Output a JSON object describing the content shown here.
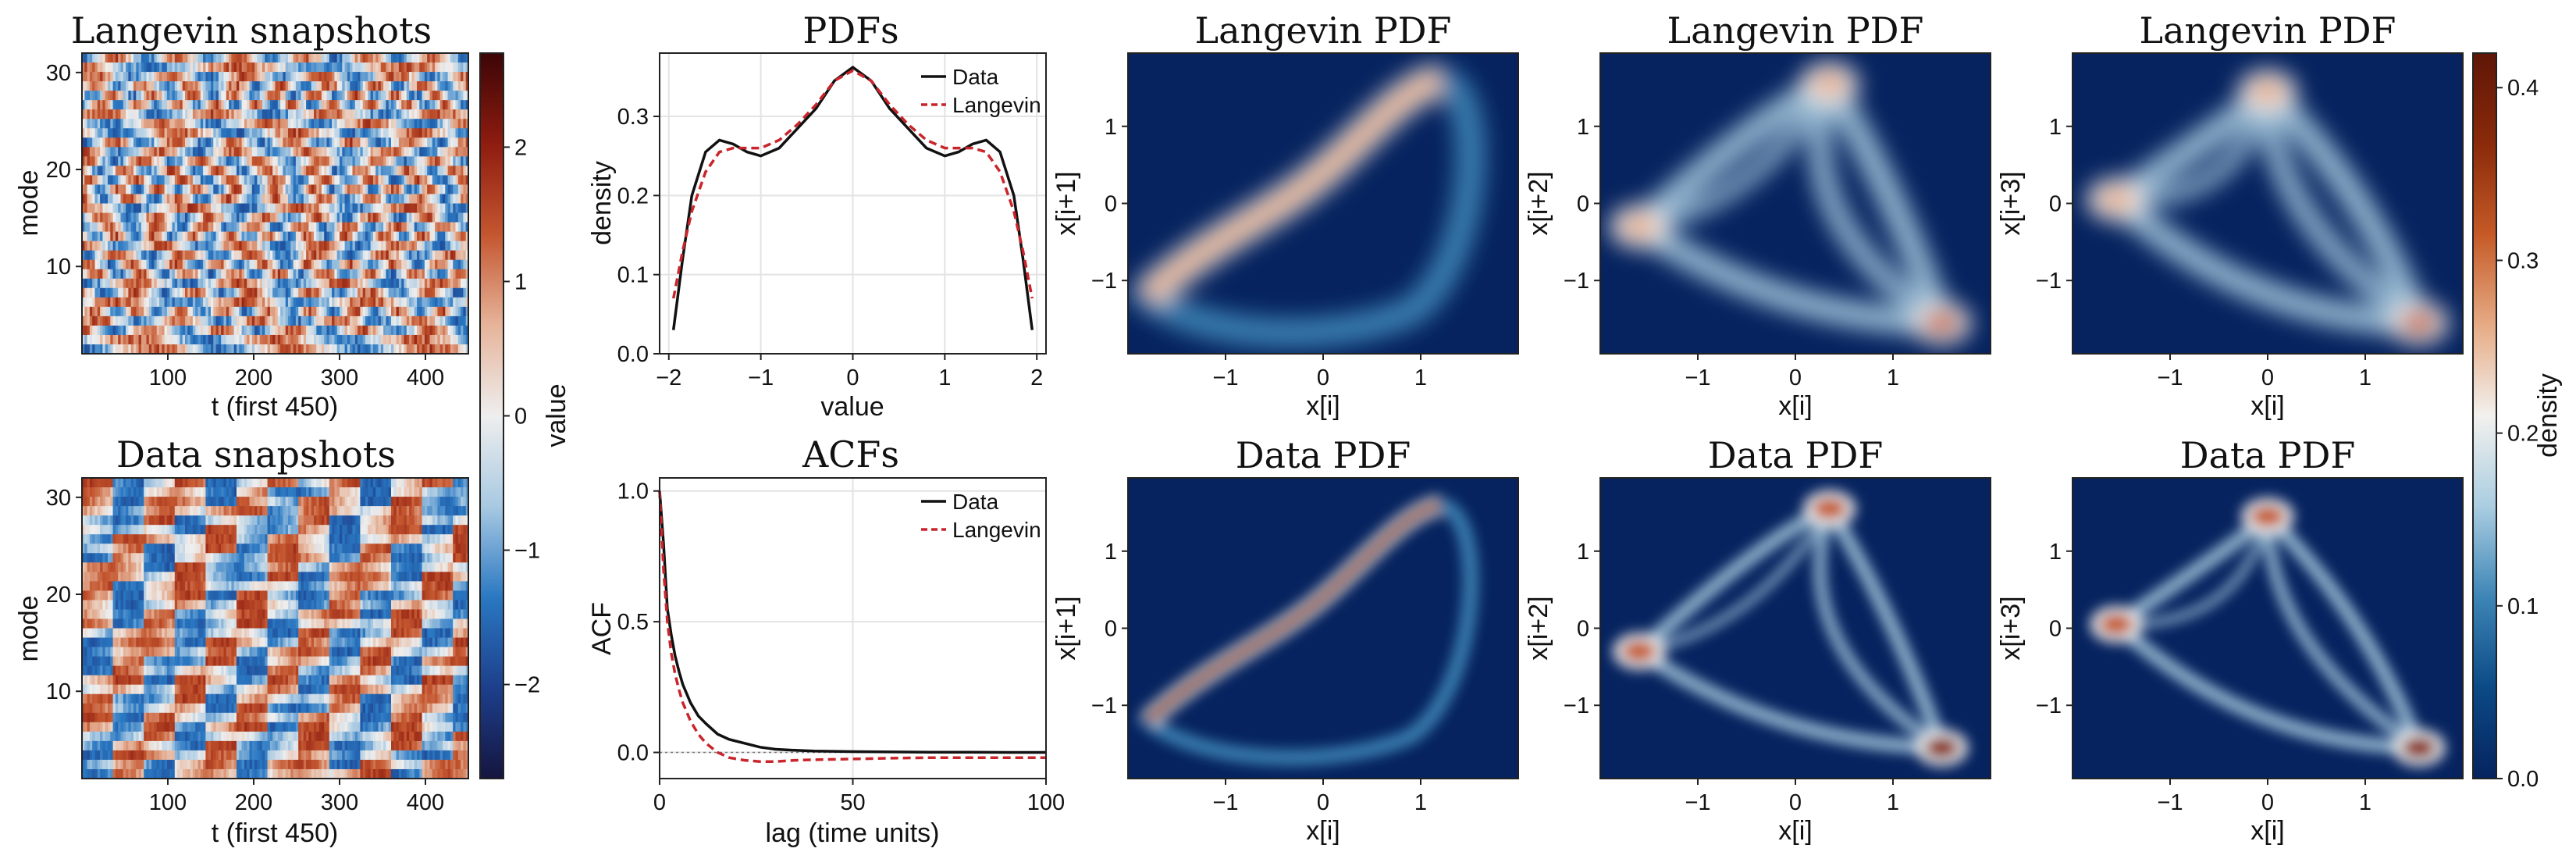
{
  "colors": {
    "diverging": [
      "#15153f",
      "#1d3f8c",
      "#2a78c2",
      "#a8c9e2",
      "#eeeeee",
      "#e6b49a",
      "#c4562f",
      "#8e1c10",
      "#3c0506"
    ],
    "density": [
      "#06235f",
      "#0b4a86",
      "#3d85b6",
      "#aacde1",
      "#f2f1ee",
      "#e6ab85",
      "#c55a27",
      "#8a2a0a",
      "#5f1608"
    ],
    "data_line": "#111111",
    "langevin_line": "#c9252b"
  },
  "colorbar_value": {
    "label": "value",
    "ticks": [
      "2",
      "1",
      "0",
      "−1",
      "−2"
    ],
    "range": [
      -2.7,
      2.7
    ]
  },
  "colorbar_density": {
    "label": "density",
    "ticks": [
      "0.4",
      "0.3",
      "0.2",
      "0.1",
      "0.0"
    ],
    "range": [
      0.0,
      0.42
    ]
  },
  "chart_data": [
    {
      "type": "heatmap",
      "title": "Langevin snapshots",
      "xlabel": "t (first 450)",
      "ylabel": "mode",
      "xticks": [
        "100",
        "200",
        "300",
        "400"
      ],
      "yticks": [
        "10",
        "20",
        "30"
      ],
      "xlim": [
        0,
        450
      ],
      "ylim": [
        1,
        32
      ]
    },
    {
      "type": "heatmap",
      "title": "Data snapshots",
      "xlabel": "t (first 450)",
      "ylabel": "mode",
      "xticks": [
        "100",
        "200",
        "300",
        "400"
      ],
      "yticks": [
        "10",
        "20",
        "30"
      ],
      "xlim": [
        0,
        450
      ],
      "ylim": [
        1,
        32
      ]
    },
    {
      "type": "line",
      "title": "PDFs",
      "xlabel": "value",
      "ylabel": "density",
      "xticks": [
        "−2",
        "−1",
        "0",
        "1",
        "2"
      ],
      "yticks": [
        "0.0",
        "0.1",
        "0.2",
        "0.3"
      ],
      "xlim": [
        -2.1,
        2.1
      ],
      "ylim": [
        0.0,
        0.38
      ],
      "x": [
        -1.95,
        -1.85,
        -1.75,
        -1.6,
        -1.45,
        -1.3,
        -1.15,
        -1.0,
        -0.8,
        -0.6,
        -0.4,
        -0.2,
        0.0,
        0.2,
        0.4,
        0.6,
        0.8,
        1.0,
        1.15,
        1.3,
        1.45,
        1.6,
        1.75,
        1.85,
        1.95
      ],
      "series": [
        {
          "name": "Data",
          "values": [
            0.03,
            0.12,
            0.2,
            0.255,
            0.27,
            0.265,
            0.255,
            0.25,
            0.26,
            0.285,
            0.31,
            0.345,
            0.362,
            0.345,
            0.31,
            0.285,
            0.26,
            0.25,
            0.255,
            0.265,
            0.27,
            0.255,
            0.2,
            0.12,
            0.03
          ]
        },
        {
          "name": "Langevin",
          "values": [
            0.07,
            0.13,
            0.18,
            0.23,
            0.255,
            0.26,
            0.26,
            0.26,
            0.27,
            0.29,
            0.315,
            0.345,
            0.358,
            0.345,
            0.315,
            0.29,
            0.27,
            0.26,
            0.26,
            0.26,
            0.255,
            0.23,
            0.18,
            0.13,
            0.07
          ]
        }
      ]
    },
    {
      "type": "line",
      "title": "ACFs",
      "xlabel": "lag (time units)",
      "ylabel": "ACF",
      "xticks": [
        "0",
        "50",
        "100"
      ],
      "yticks": [
        "0.0",
        "0.5",
        "1.0"
      ],
      "xlim": [
        0,
        100
      ],
      "ylim": [
        -0.1,
        1.05
      ],
      "x": [
        0,
        1,
        2,
        3,
        4,
        5,
        6,
        8,
        10,
        12,
        15,
        18,
        22,
        26,
        30,
        35,
        40,
        50,
        60,
        70,
        80,
        90,
        100
      ],
      "series": [
        {
          "name": "Data",
          "values": [
            1.0,
            0.8,
            0.55,
            0.45,
            0.37,
            0.31,
            0.26,
            0.19,
            0.14,
            0.11,
            0.07,
            0.05,
            0.035,
            0.02,
            0.012,
            0.008,
            0.005,
            0.003,
            0.002,
            0.001,
            0.001,
            0.0,
            0.0
          ]
        },
        {
          "name": "Langevin",
          "values": [
            1.0,
            0.7,
            0.5,
            0.38,
            0.3,
            0.24,
            0.19,
            0.12,
            0.07,
            0.035,
            0.0,
            -0.02,
            -0.03,
            -0.035,
            -0.035,
            -0.03,
            -0.028,
            -0.025,
            -0.022,
            -0.02,
            -0.02,
            -0.02,
            -0.02
          ]
        }
      ]
    },
    {
      "type": "heatmap",
      "title": "Langevin PDF",
      "xlabel": "x[i]",
      "ylabel": "x[i+1]",
      "xticks": [
        "−1",
        "0",
        "1"
      ],
      "yticks": [
        "1",
        "0",
        "−1"
      ],
      "xlim": [
        -2,
        2
      ],
      "ylim": [
        -1.95,
        1.95
      ]
    },
    {
      "type": "heatmap",
      "title": "Langevin PDF",
      "xlabel": "x[i]",
      "ylabel": "x[i+2]",
      "xticks": [
        "−1",
        "0",
        "1"
      ],
      "yticks": [
        "1",
        "0",
        "−1"
      ],
      "xlim": [
        -2,
        2
      ],
      "ylim": [
        -1.95,
        1.95
      ]
    },
    {
      "type": "heatmap",
      "title": "Langevin PDF",
      "xlabel": "x[i]",
      "ylabel": "x[i+3]",
      "xticks": [
        "−1",
        "0",
        "1"
      ],
      "yticks": [
        "1",
        "0",
        "−1"
      ],
      "xlim": [
        -2,
        2
      ],
      "ylim": [
        -1.95,
        1.95
      ]
    },
    {
      "type": "heatmap",
      "title": "Data PDF",
      "xlabel": "x[i]",
      "ylabel": "x[i+1]",
      "xticks": [
        "−1",
        "0",
        "1"
      ],
      "yticks": [
        "1",
        "0",
        "−1"
      ],
      "xlim": [
        -2,
        2
      ],
      "ylim": [
        -1.95,
        1.95
      ]
    },
    {
      "type": "heatmap",
      "title": "Data PDF",
      "xlabel": "x[i]",
      "ylabel": "x[i+2]",
      "xticks": [
        "−1",
        "0",
        "1"
      ],
      "yticks": [
        "1",
        "0",
        "−1"
      ],
      "xlim": [
        -2,
        2
      ],
      "ylim": [
        -1.95,
        1.95
      ]
    },
    {
      "type": "heatmap",
      "title": "Data PDF",
      "xlabel": "x[i]",
      "ylabel": "x[i+3]",
      "xticks": [
        "−1",
        "0",
        "1"
      ],
      "yticks": [
        "1",
        "0",
        "−1"
      ],
      "xlim": [
        -2,
        2
      ],
      "ylim": [
        -1.95,
        1.95
      ]
    }
  ]
}
